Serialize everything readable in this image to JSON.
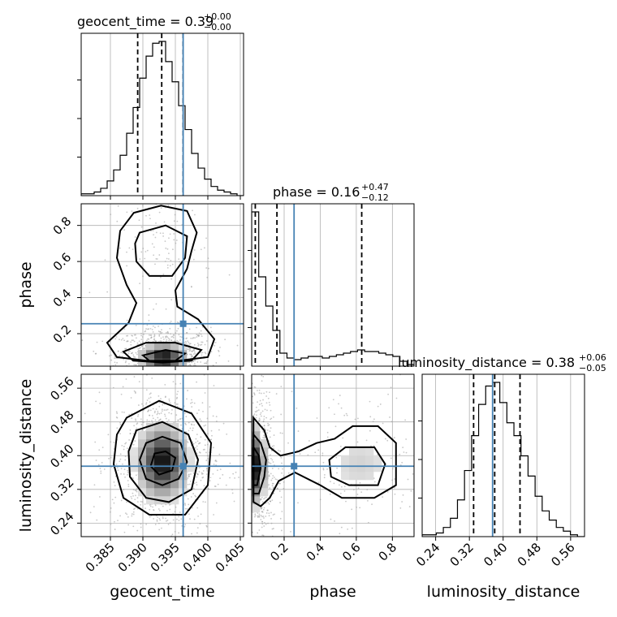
{
  "chart_data": {
    "type": "corner",
    "parameters": [
      "geocent_time",
      "phase",
      "luminosity_distance"
    ],
    "axis_labels": {
      "geocent_time": "geocent_time",
      "phase": "phase",
      "luminosity_distance": "luminosity_distance"
    },
    "titles": {
      "geocent_time": "geocent_time = 0.39",
      "phase": "phase = 0.16",
      "luminosity_distance": "luminosity_distance = 0.38"
    },
    "title_errors": {
      "geocent_time": {
        "plus": "+0.00",
        "minus": "−0.00"
      },
      "phase": {
        "plus": "+0.47",
        "minus": "−0.12"
      },
      "luminosity_distance": {
        "plus": "+0.06",
        "minus": "−0.05"
      }
    },
    "ranges": {
      "geocent_time": [
        0.3805,
        0.4055
      ],
      "phase": [
        0.02,
        0.92
      ],
      "luminosity_distance": [
        0.208,
        0.593
      ]
    },
    "tick_labels": {
      "geocent_time": [
        "0.385",
        "0.390",
        "0.395",
        "0.400",
        "0.405"
      ],
      "phase": [
        "0.2",
        "0.4",
        "0.6",
        "0.8"
      ],
      "luminosity_distance": [
        "0.24",
        "0.32",
        "0.40",
        "0.48",
        "0.56"
      ]
    },
    "ticks": {
      "geocent_time": [
        0.385,
        0.39,
        0.395,
        0.4,
        0.405
      ],
      "phase": [
        0.2,
        0.4,
        0.6,
        0.8
      ],
      "luminosity_distance": [
        0.24,
        0.32,
        0.4,
        0.48,
        0.56
      ]
    },
    "truths": {
      "geocent_time": 0.3962,
      "phase": 0.255,
      "luminosity_distance": 0.375
    },
    "quantiles": {
      "geocent_time": [
        0.3892,
        0.3929,
        0.3962
      ],
      "phase": [
        0.04,
        0.16,
        0.63
      ],
      "luminosity_distance": [
        0.33,
        0.38,
        0.44
      ]
    },
    "histograms": {
      "geocent_time": {
        "counts": [
          1,
          1,
          2,
          4,
          8,
          14,
          22,
          34,
          48,
          64,
          76,
          83,
          84,
          73,
          62,
          49,
          36,
          23,
          15,
          9,
          5,
          3,
          2,
          1,
          0
        ]
      },
      "phase": {
        "counts": [
          95,
          55,
          37,
          22,
          8,
          5,
          4,
          5,
          6,
          6,
          5,
          6,
          7,
          8,
          9,
          10,
          9,
          9,
          8,
          7,
          6,
          3,
          1
        ]
      },
      "luminosity_distance": {
        "counts": [
          1,
          1,
          2,
          5,
          10,
          20,
          36,
          55,
          72,
          82,
          84,
          73,
          62,
          55,
          44,
          33,
          22,
          14,
          9,
          5,
          3,
          1,
          0
        ]
      }
    },
    "contours": {
      "phase_vs_geocent_time": [
        [
          [
            0.3886,
            0.87
          ],
          [
            0.3928,
            0.91
          ],
          [
            0.3968,
            0.88
          ],
          [
            0.3983,
            0.76
          ],
          [
            0.3975,
            0.66
          ],
          [
            0.3968,
            0.56
          ],
          [
            0.395,
            0.44
          ],
          [
            0.3953,
            0.35
          ],
          [
            0.3985,
            0.28
          ],
          [
            0.401,
            0.17
          ],
          [
            0.4,
            0.07
          ],
          [
            0.393,
            0.04
          ],
          [
            0.386,
            0.07
          ],
          [
            0.3845,
            0.15
          ],
          [
            0.3878,
            0.26
          ],
          [
            0.389,
            0.37
          ],
          [
            0.3875,
            0.47
          ],
          [
            0.386,
            0.62
          ],
          [
            0.3865,
            0.77
          ],
          [
            0.3886,
            0.87
          ]
        ],
        [
          [
            0.3895,
            0.76
          ],
          [
            0.3935,
            0.8
          ],
          [
            0.3968,
            0.74
          ],
          [
            0.3965,
            0.62
          ],
          [
            0.3945,
            0.52
          ],
          [
            0.391,
            0.52
          ],
          [
            0.389,
            0.6
          ],
          [
            0.3888,
            0.7
          ],
          [
            0.3895,
            0.76
          ]
        ],
        [
          [
            0.387,
            0.1
          ],
          [
            0.3905,
            0.15
          ],
          [
            0.395,
            0.15
          ],
          [
            0.399,
            0.11
          ],
          [
            0.3975,
            0.05
          ],
          [
            0.393,
            0.04
          ],
          [
            0.3885,
            0.05
          ],
          [
            0.387,
            0.1
          ]
        ],
        [
          [
            0.39,
            0.08
          ],
          [
            0.3935,
            0.11
          ],
          [
            0.3965,
            0.09
          ],
          [
            0.395,
            0.05
          ],
          [
            0.391,
            0.05
          ],
          [
            0.39,
            0.08
          ]
        ]
      ],
      "luminosity_distance_vs_geocent_time": [
        [
          [
            0.3875,
            0.49
          ],
          [
            0.3925,
            0.53
          ],
          [
            0.3975,
            0.5
          ],
          [
            0.4005,
            0.43
          ],
          [
            0.4,
            0.33
          ],
          [
            0.3965,
            0.26
          ],
          [
            0.391,
            0.26
          ],
          [
            0.387,
            0.3
          ],
          [
            0.3855,
            0.38
          ],
          [
            0.386,
            0.45
          ],
          [
            0.3875,
            0.49
          ]
        ],
        [
          [
            0.389,
            0.46
          ],
          [
            0.393,
            0.48
          ],
          [
            0.397,
            0.45
          ],
          [
            0.3985,
            0.39
          ],
          [
            0.3975,
            0.32
          ],
          [
            0.394,
            0.29
          ],
          [
            0.3905,
            0.3
          ],
          [
            0.388,
            0.35
          ],
          [
            0.3878,
            0.41
          ],
          [
            0.389,
            0.46
          ]
        ],
        [
          [
            0.3905,
            0.43
          ],
          [
            0.393,
            0.445
          ],
          [
            0.3958,
            0.43
          ],
          [
            0.3968,
            0.385
          ],
          [
            0.3955,
            0.345
          ],
          [
            0.393,
            0.33
          ],
          [
            0.3905,
            0.345
          ],
          [
            0.3895,
            0.39
          ],
          [
            0.3905,
            0.43
          ]
        ],
        [
          [
            0.3918,
            0.405
          ],
          [
            0.3935,
            0.41
          ],
          [
            0.395,
            0.395
          ],
          [
            0.3945,
            0.365
          ],
          [
            0.3925,
            0.355
          ],
          [
            0.3912,
            0.375
          ],
          [
            0.3918,
            0.405
          ]
        ]
      ],
      "luminosity_distance_vs_phase": [
        [
          [
            0.03,
            0.49
          ],
          [
            0.09,
            0.46
          ],
          [
            0.12,
            0.42
          ],
          [
            0.18,
            0.4
          ],
          [
            0.28,
            0.41
          ],
          [
            0.38,
            0.43
          ],
          [
            0.48,
            0.44
          ],
          [
            0.58,
            0.47
          ],
          [
            0.72,
            0.47
          ],
          [
            0.82,
            0.43
          ],
          [
            0.82,
            0.33
          ],
          [
            0.7,
            0.3
          ],
          [
            0.52,
            0.3
          ],
          [
            0.4,
            0.33
          ],
          [
            0.26,
            0.36
          ],
          [
            0.17,
            0.34
          ],
          [
            0.12,
            0.3
          ],
          [
            0.07,
            0.28
          ],
          [
            0.03,
            0.29
          ],
          [
            0.03,
            0.49
          ]
        ],
        [
          [
            0.03,
            0.45
          ],
          [
            0.07,
            0.43
          ],
          [
            0.1,
            0.39
          ],
          [
            0.09,
            0.35
          ],
          [
            0.06,
            0.31
          ],
          [
            0.03,
            0.31
          ],
          [
            0.03,
            0.45
          ]
        ],
        [
          [
            0.03,
            0.42
          ],
          [
            0.06,
            0.4
          ],
          [
            0.07,
            0.37
          ],
          [
            0.05,
            0.33
          ],
          [
            0.03,
            0.33
          ],
          [
            0.03,
            0.42
          ]
        ],
        [
          [
            0.45,
            0.39
          ],
          [
            0.54,
            0.42
          ],
          [
            0.7,
            0.42
          ],
          [
            0.76,
            0.38
          ],
          [
            0.72,
            0.33
          ],
          [
            0.56,
            0.33
          ],
          [
            0.46,
            0.35
          ],
          [
            0.45,
            0.39
          ]
        ]
      ]
    },
    "density_peaks": {
      "phase_vs_geocent_time": [
        {
          "x": 0.3932,
          "y": 0.07,
          "sx": 0.002,
          "sy": 0.045,
          "w": 1.0
        },
        {
          "x": 0.393,
          "y": 0.68,
          "sx": 0.0022,
          "sy": 0.08,
          "w": 0.12
        }
      ],
      "luminosity_distance_vs_geocent_time": [
        {
          "x": 0.393,
          "y": 0.385,
          "sx": 0.0022,
          "sy": 0.05,
          "w": 1.0
        }
      ],
      "luminosity_distance_vs_phase": [
        {
          "x": 0.035,
          "y": 0.375,
          "sx": 0.035,
          "sy": 0.05,
          "w": 1.0
        },
        {
          "x": 0.62,
          "y": 0.38,
          "sx": 0.12,
          "sy": 0.05,
          "w": 0.18
        }
      ]
    },
    "colors": {
      "truth": "#4682b4",
      "lines": "#000000",
      "grid": "#b0b0b0",
      "samples": "#9a9a9a"
    },
    "grid": true,
    "legend": "none"
  }
}
